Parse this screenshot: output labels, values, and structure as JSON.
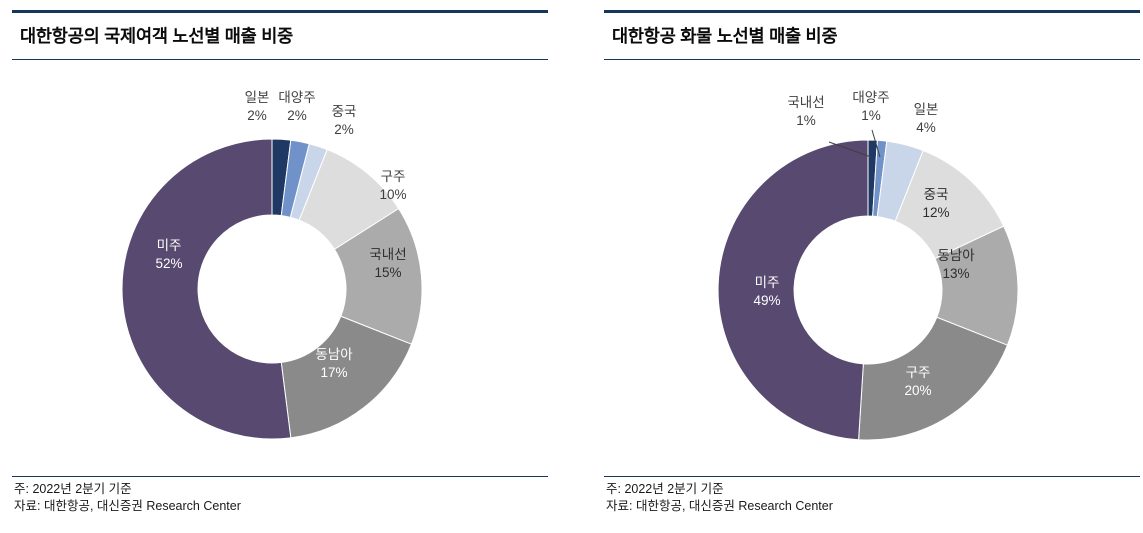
{
  "panels": [
    {
      "title": "대한항공의 국제여객 노선별 매출 비중",
      "note": "주: 2022년 2분기 기준",
      "source": "자료: 대한항공, 대신증권 Research Center"
    },
    {
      "title": "대한항공 화물 노선별 매출 비중",
      "note": "주: 2022년 2분기 기준",
      "source": "자료: 대한항공, 대신증권 Research Center"
    }
  ],
  "colors": {
    "accent_navy": "#16365C",
    "purple": "#57496F",
    "navy": "#1F3864",
    "blue": "#7092C8",
    "pale_blue": "#C9D6EA",
    "gray_light": "#DDDDDD",
    "gray_mid": "#ABABAB",
    "gray_dark": "#8A8A8A"
  },
  "chart_data": [
    {
      "type": "pie",
      "variant": "donut",
      "title": "대한항공의 국제여객 노선별 매출 비중",
      "unit": "%",
      "start_angle_deg": 0,
      "clockwise": true,
      "center": [
        260,
        229
      ],
      "outer_radius": 150,
      "inner_radius": 74,
      "slices": [
        {
          "label": "일본",
          "value": 2,
          "color": "#1F3864",
          "placement": "outside",
          "label_xy": [
            245,
            42
          ],
          "text_color": "#3f3f3f"
        },
        {
          "label": "대양주",
          "value": 2,
          "color": "#7092C8",
          "placement": "outside",
          "label_xy": [
            285,
            42
          ],
          "text_color": "#3f3f3f"
        },
        {
          "label": "중국",
          "value": 2,
          "color": "#C9D6EA",
          "placement": "outside",
          "label_xy": [
            332,
            56
          ],
          "text_color": "#3f3f3f"
        },
        {
          "label": "구주",
          "value": 10,
          "color": "#DDDDDD",
          "placement": "outside",
          "label_xy": [
            381,
            121
          ],
          "text_color": "#3f3f3f"
        },
        {
          "label": "국내선",
          "value": 15,
          "color": "#ABABAB",
          "placement": "inside",
          "label_xy": [
            376,
            199
          ],
          "text_color": "#2e2e2e"
        },
        {
          "label": "동남아",
          "value": 17,
          "color": "#8A8A8A",
          "placement": "inside",
          "label_xy": [
            322,
            299
          ],
          "text_color": "#ffffff"
        },
        {
          "label": "미주",
          "value": 52,
          "color": "#57496F",
          "placement": "inside",
          "label_xy": [
            157,
            190
          ],
          "text_color": "#ffffff"
        }
      ]
    },
    {
      "type": "pie",
      "variant": "donut",
      "title": "대한항공 화물 노선별 매출 비중",
      "unit": "%",
      "start_angle_deg": 0,
      "clockwise": true,
      "center": [
        264,
        230
      ],
      "outer_radius": 150,
      "inner_radius": 74,
      "slices": [
        {
          "label": "국내선",
          "value": 1,
          "color": "#1F3864",
          "placement": "outside",
          "label_xy": [
            202,
            47
          ],
          "text_color": "#3f3f3f",
          "leader": [
            [
              225,
              82
            ],
            [
              267,
              97
            ]
          ]
        },
        {
          "label": "대양주",
          "value": 1,
          "color": "#7092C8",
          "placement": "outside",
          "label_xy": [
            267,
            42
          ],
          "text_color": "#3f3f3f",
          "leader": [
            [
              268,
              70
            ],
            [
              276,
              97
            ]
          ]
        },
        {
          "label": "일본",
          "value": 4,
          "color": "#C9D6EA",
          "placement": "outside",
          "label_xy": [
            322,
            54
          ],
          "text_color": "#3f3f3f"
        },
        {
          "label": "중국",
          "value": 12,
          "color": "#DDDDDD",
          "placement": "inside",
          "label_xy": [
            332,
            139
          ],
          "text_color": "#2e2e2e"
        },
        {
          "label": "동남아",
          "value": 13,
          "color": "#ABABAB",
          "placement": "inside",
          "label_xy": [
            352,
            200
          ],
          "text_color": "#2e2e2e"
        },
        {
          "label": "구주",
          "value": 20,
          "color": "#8A8A8A",
          "placement": "inside",
          "label_xy": [
            314,
            317
          ],
          "text_color": "#ffffff"
        },
        {
          "label": "미주",
          "value": 49,
          "color": "#57496F",
          "placement": "inside",
          "label_xy": [
            163,
            227
          ],
          "text_color": "#ffffff"
        }
      ]
    }
  ]
}
